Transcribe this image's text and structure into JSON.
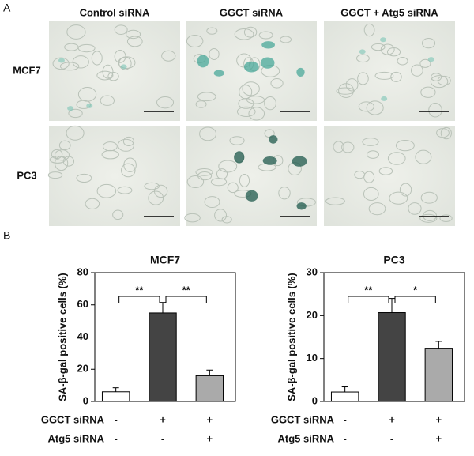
{
  "panel_a": {
    "label": "A",
    "columns": [
      "Control siRNA",
      "GGCT siRNA",
      "GGCT + Atg5 siRNA"
    ],
    "rows": [
      "MCF7",
      "PC3"
    ]
  },
  "panel_b": {
    "label": "B"
  },
  "chart_data": [
    {
      "type": "bar",
      "title": "MCF7",
      "y_label": "SA-β-gal positive cells (%)",
      "values": [
        6,
        55,
        16
      ],
      "errors": [
        2.5,
        6.5,
        3.5
      ],
      "colors": [
        "#ffffff",
        "#444444",
        "#aaaaaa"
      ],
      "ylim": [
        0,
        80
      ],
      "yticks": [
        0,
        20,
        40,
        60,
        80
      ],
      "conditions": [
        {
          "name": "GGCT siRNA",
          "values": [
            "-",
            "+",
            "+"
          ]
        },
        {
          "name": "Atg5 siRNA",
          "values": [
            "-",
            "-",
            "+"
          ]
        }
      ],
      "significance": [
        {
          "from": 0,
          "to": 1,
          "label": "**"
        },
        {
          "from": 1,
          "to": 2,
          "label": "**"
        }
      ]
    },
    {
      "type": "bar",
      "title": "PC3",
      "y_label": "SA-β-gal positive cells (%)",
      "values": [
        2.2,
        20.7,
        12.4
      ],
      "errors": [
        1.2,
        3.3,
        1.6
      ],
      "colors": [
        "#ffffff",
        "#444444",
        "#aaaaaa"
      ],
      "ylim": [
        0,
        30
      ],
      "yticks": [
        0,
        10,
        20,
        30
      ],
      "conditions": [
        {
          "name": "GGCT siRNA",
          "values": [
            "-",
            "+",
            "+"
          ]
        },
        {
          "name": "Atg5 siRNA",
          "values": [
            "-",
            "-",
            "+"
          ]
        }
      ],
      "significance": [
        {
          "from": 0,
          "to": 1,
          "label": "**"
        },
        {
          "from": 1,
          "to": 2,
          "label": "*"
        }
      ]
    }
  ]
}
